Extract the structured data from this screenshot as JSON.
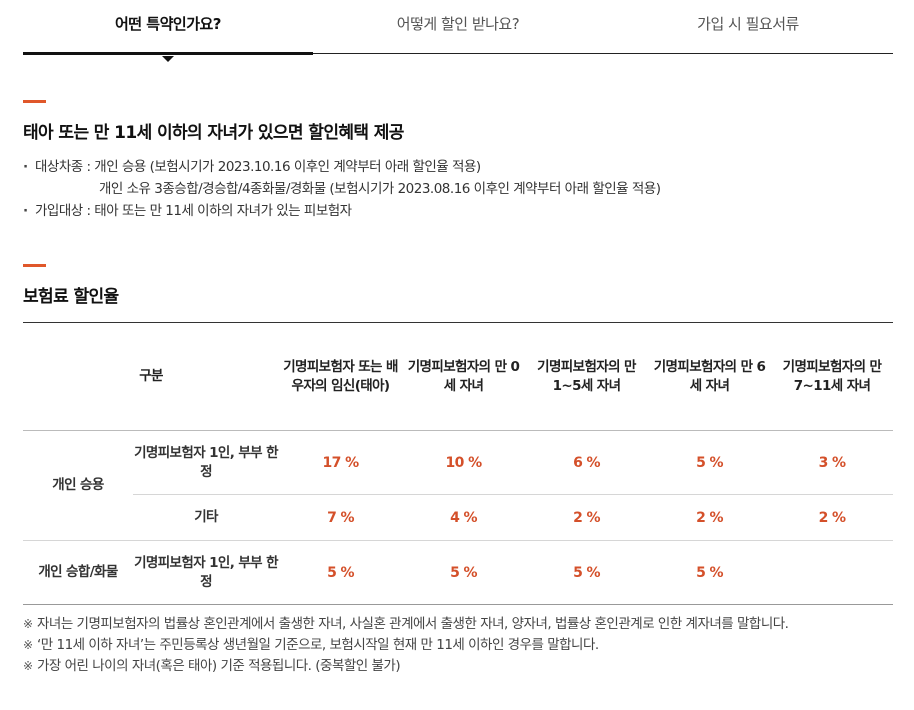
{
  "tabs": [
    {
      "label": "어떤 특약인가요?",
      "active": true
    },
    {
      "label": "어떻게 할인 받나요?",
      "active": false
    },
    {
      "label": "가입 시 필요서류",
      "active": false
    }
  ],
  "intro": {
    "title": "태아 또는 만 11세 이하의 자녀가 있으면 할인혜택 제공",
    "lines": [
      "대상차종 : 개인 승용 (보험시기가 2023.10.16 이후인 계약부터 아래 할인율 적용)",
      "개인 소유 3종승합/경승합/4종화물/경화물 (보험시기가 2023.08.16 이후인 계약부터 아래 할인율 적용)",
      "가입대상 : 태아 또는 만 11세 이하의 자녀가 있는 피보험자"
    ]
  },
  "rates": {
    "title": "보험료 할인율",
    "header": {
      "category": "구분",
      "cols": [
        "기명피보험자 또는 배우자의 임신(태아)",
        "기명피보험자의 만 0세 자녀",
        "기명피보험자의 만 1~5세 자녀",
        "기명피보험자의 만 6세 자녀",
        "기명피보험자의 만 7~11세 자녀"
      ]
    },
    "rows": [
      {
        "group": "개인 승용",
        "sub": "기명피보험자 1인, 부부 한정",
        "values": [
          "17 %",
          "10 %",
          "6 %",
          "5 %",
          "3 %"
        ]
      },
      {
        "sub": "기타",
        "values": [
          "7 %",
          "4 %",
          "2 %",
          "2 %",
          "2 %"
        ]
      },
      {
        "group": "개인 승합/화물",
        "sub": "기명피보험자 1인, 부부 한정",
        "values": [
          "5 %",
          "5 %",
          "5 %",
          "5 %",
          ""
        ]
      }
    ]
  },
  "notes": {
    "mark": "※",
    "items": [
      "자녀는 기명피보험자의 법률상 혼인관계에서 출생한 자녀, 사실혼 관계에서 출생한 자녀, 양자녀, 법률상 혼인관계로 인한 계자녀를 말합니다.",
      "‘만 11세 이하 자녀’는 주민등록상 생년월일 기준으로, 보험시작일 현재 만 11세 이하인 경우를 말합니다.",
      "가장 어린 나이의 자녀(혹은 태아) 기준 적용됩니다. (중복할인 불가)"
    ]
  }
}
